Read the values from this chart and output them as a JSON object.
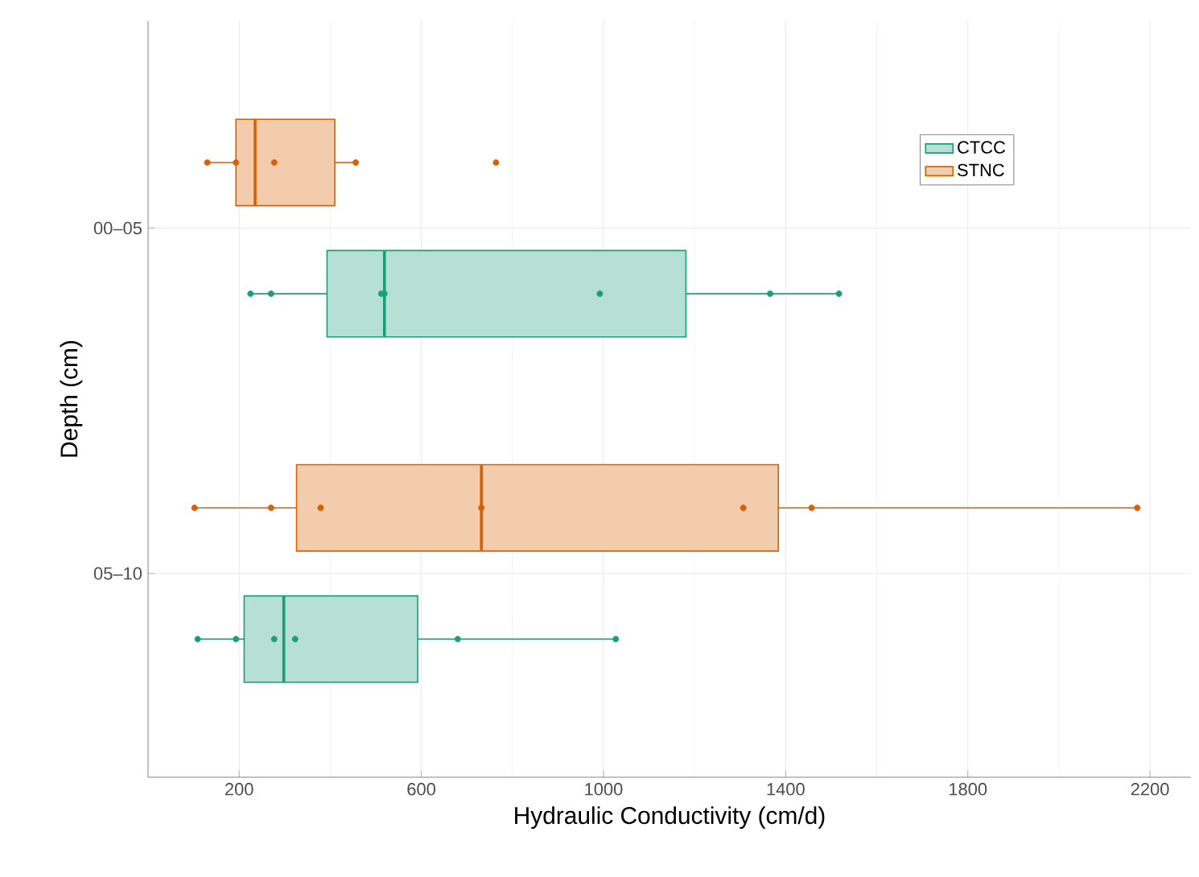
{
  "chart_data": {
    "type": "box",
    "orientation": "horizontal",
    "xlabel": "Hydraulic Conductivity (cm/d)",
    "ylabel": "Depth (cm)",
    "categories": [
      "00–05",
      "05–10"
    ],
    "xlim": [
      0,
      2290
    ],
    "xticks": [
      200,
      600,
      1000,
      1400,
      1800,
      2200
    ],
    "grid": true,
    "legend": "top right",
    "series": [
      {
        "name": "CTCC",
        "color": "#1b9e77",
        "boxes": [
          {
            "low": 225,
            "q1": 393,
            "median": 519,
            "q3": 1181,
            "high": 1517
          },
          {
            "low": 109,
            "q1": 211,
            "median": 298,
            "q3": 592,
            "high": 1027
          }
        ]
      },
      {
        "name": "STNC",
        "color": "#d95f02",
        "boxes": [
          {
            "low": 130,
            "q1": 193,
            "median": 235,
            "q3": 410,
            "high": 456
          },
          {
            "low": 102,
            "q1": 326,
            "median": 732,
            "q3": 1384,
            "high": 2172
          }
        ]
      },
      {
        "type": "scatter",
        "color": "#1b9e77",
        "x": [
          "00–05",
          "00–05",
          "00–05",
          "00–05",
          "00–05",
          "00–05",
          "00–05",
          "05–10",
          "05–10",
          "05–10",
          "05–10",
          "05–10",
          "05–10"
        ],
        "values": [
          225,
          270,
          512,
          519,
          992,
          1366,
          1517,
          109,
          193,
          277,
          323,
          680,
          1027
        ]
      },
      {
        "type": "scatter",
        "color": "#d95f02",
        "x": [
          "00–05",
          "00–05",
          "00–05",
          "00–05",
          "00–05",
          "05–10",
          "05–10",
          "05–10",
          "05–10",
          "05–10",
          "05–10",
          "05–10"
        ],
        "values": [
          130,
          193,
          277,
          456,
          764,
          102,
          270,
          379,
          732,
          1307,
          1457,
          2172
        ]
      }
    ]
  }
}
